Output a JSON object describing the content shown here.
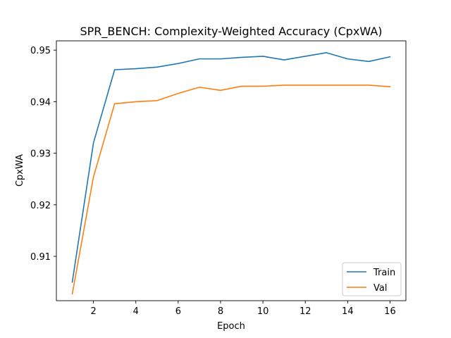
{
  "chart_data": {
    "type": "line",
    "title": "SPR_BENCH: Complexity-Weighted Accuracy (CpxWA)",
    "xlabel": "Epoch",
    "ylabel": "CpxWA",
    "xlim": [
      0.25,
      16.75
    ],
    "ylim": [
      0.9014,
      0.9518
    ],
    "xticks": [
      2,
      4,
      6,
      8,
      10,
      12,
      14,
      16
    ],
    "yticks": [
      0.91,
      0.92,
      0.93,
      0.94,
      0.95
    ],
    "x": [
      1,
      2,
      3,
      4,
      5,
      6,
      7,
      8,
      9,
      10,
      11,
      12,
      13,
      14,
      15,
      16
    ],
    "series": [
      {
        "name": "Train",
        "color": "#1f77b4",
        "values": [
          0.905,
          0.932,
          0.9462,
          0.9464,
          0.9467,
          0.9474,
          0.9483,
          0.9483,
          0.9486,
          0.9488,
          0.9481,
          0.9488,
          0.9495,
          0.9483,
          0.9478,
          0.9487
        ]
      },
      {
        "name": "Val",
        "color": "#ff7f0e",
        "values": [
          0.9027,
          0.9254,
          0.9396,
          0.94,
          0.9402,
          0.9416,
          0.9428,
          0.9422,
          0.943,
          0.943,
          0.9432,
          0.9432,
          0.9432,
          0.9432,
          0.9432,
          0.9429
        ]
      }
    ],
    "grid": false,
    "legend_position": "lower-right"
  }
}
